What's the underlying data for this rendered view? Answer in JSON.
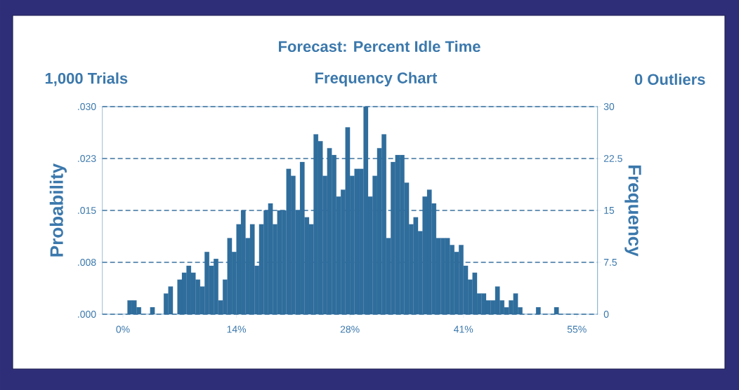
{
  "chart_data": {
    "type": "histogram",
    "title": "Forecast: Percent Idle Time",
    "subtitle": "Frequency Chart",
    "annotations": [
      "1,000 Trials",
      "0 Outliers"
    ],
    "ylabel": "Probability",
    "y2label": "Frequency",
    "bins": [
      0,
      0.55,
      1.1,
      1.65,
      2.2,
      2.75,
      3.3,
      3.85,
      4.4,
      4.95,
      5.5,
      6.05,
      6.6,
      7.15,
      7.7,
      8.25,
      8.8,
      9.35,
      9.9,
      10.45,
      11,
      11.55,
      12.1,
      12.65,
      13.2,
      13.75,
      14.3,
      14.85,
      15.4,
      15.95,
      16.5,
      17.05,
      17.6,
      18.15,
      18.7,
      19.25,
      19.8,
      20.35,
      20.9,
      21.45,
      22,
      22.55,
      23.1,
      23.65,
      24.2,
      24.75,
      25.3,
      25.85,
      26.4,
      26.95,
      27.5,
      28.05,
      28.6,
      29.15,
      29.7,
      30.25,
      30.8,
      31.35,
      31.9,
      32.45,
      33,
      33.55,
      34.1,
      34.65,
      35.2,
      35.75,
      36.3,
      36.85,
      37.4,
      37.95,
      38.5,
      39.05,
      39.6,
      40.15,
      40.7,
      41.25,
      41.8,
      42.35,
      42.9,
      43.45,
      44,
      44.55,
      45.1,
      45.65,
      46.2,
      46.75,
      47.3,
      47.85,
      48.4,
      48.95,
      49.5,
      50.05,
      50.6,
      51.15,
      51.7,
      52.25,
      52.8,
      53.35,
      53.9,
      54.45,
      55
    ],
    "series": [
      {
        "color": "#2f6d9c",
        "axis": "y2",
        "values": [
          0,
          2,
          2,
          1,
          0,
          0,
          1,
          0,
          0,
          3,
          4,
          0,
          5,
          6,
          7,
          6,
          5,
          4,
          9,
          7,
          8,
          2,
          5,
          11,
          9,
          13,
          15,
          11,
          13,
          7,
          13,
          15,
          16,
          13,
          15,
          15,
          21,
          20,
          15,
          22,
          14,
          13,
          26,
          25,
          20,
          24,
          23,
          17,
          18,
          27,
          20,
          21,
          21,
          30,
          17,
          20,
          24,
          26,
          11,
          22,
          23,
          23,
          19,
          13,
          14,
          12,
          17,
          18,
          16,
          11,
          11,
          11,
          10,
          9,
          10,
          7,
          5,
          6,
          3,
          3,
          2,
          2,
          4,
          2,
          1,
          2,
          3,
          1,
          0,
          0,
          0,
          1,
          0,
          0,
          0,
          1,
          0,
          0,
          0,
          0
        ]
      }
    ],
    "xlim": [
      -2.5,
      57.5
    ],
    "xticks": [
      {
        "value": 0,
        "label": "0%"
      },
      {
        "value": 13.75,
        "label": "14%"
      },
      {
        "value": 27.5,
        "label": "28%"
      },
      {
        "value": 41.25,
        "label": "41%"
      },
      {
        "value": 55,
        "label": "55%"
      }
    ],
    "ylim": [
      0,
      0.03
    ],
    "yticks": [
      {
        "value": 0,
        "label": ".000"
      },
      {
        "value": 0.0075,
        "label": ".008"
      },
      {
        "value": 0.015,
        "label": ".015"
      },
      {
        "value": 0.0225,
        "label": ".023"
      },
      {
        "value": 0.03,
        "label": ".030"
      }
    ],
    "y2lim": [
      0,
      30
    ],
    "y2ticks": [
      0,
      7.5,
      15,
      22.5,
      30
    ],
    "grid": "y"
  }
}
